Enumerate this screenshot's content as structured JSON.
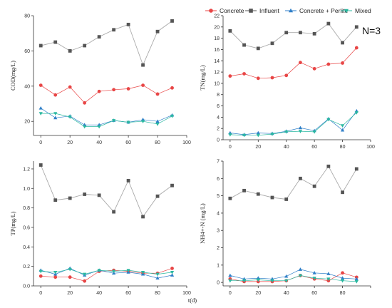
{
  "figure": {
    "legend": [
      {
        "name": "Concrete",
        "color": "#e84545",
        "marker": "circle"
      },
      {
        "name": "Influent",
        "color": "#555555",
        "marker": "square"
      },
      {
        "name": "Concrete + Perlite",
        "color": "#2f7fc8",
        "marker": "triangle-up"
      },
      {
        "name": "Mixed",
        "color": "#2ab8a0",
        "marker": "triangle-down"
      }
    ],
    "note": "N=3",
    "shared_xlabel": "t(d)"
  },
  "chart_data": [
    {
      "type": "line",
      "ylabel": "COD(mg/L)",
      "xlim": [
        -5,
        100
      ],
      "ylim": [
        12,
        80
      ],
      "xticks": [
        0,
        20,
        40,
        60,
        80,
        100
      ],
      "xtick_labels": [
        "0",
        "20",
        "40",
        "60",
        "80",
        "100"
      ],
      "yticks": [
        20,
        40,
        60,
        80
      ],
      "x": [
        0,
        10,
        20,
        30,
        40,
        50,
        60,
        70,
        80,
        90
      ],
      "series": [
        {
          "name": "Influent",
          "values": [
            63,
            65,
            60,
            63,
            68,
            72,
            75,
            52,
            71,
            77
          ]
        },
        {
          "name": "Concrete",
          "values": [
            40.5,
            35,
            39.5,
            30.5,
            37,
            38,
            38.5,
            40.5,
            35.5,
            39
          ]
        },
        {
          "name": "Concrete + Perlite",
          "values": [
            27.5,
            22,
            23,
            18,
            18,
            20.5,
            19.5,
            21,
            20,
            23.5
          ]
        },
        {
          "name": "Mixed",
          "values": [
            24.5,
            24.5,
            22.5,
            17,
            17,
            20.5,
            19.5,
            20,
            18.5,
            23
          ]
        }
      ]
    },
    {
      "type": "line",
      "ylabel": "TN(mg/L)",
      "xlim": [
        -5,
        100
      ],
      "ylim": [
        0,
        22
      ],
      "xticks": [
        0,
        20,
        40,
        60,
        80,
        100
      ],
      "xtick_labels": [
        "0",
        "20",
        "40",
        "60",
        "80",
        "100"
      ],
      "yticks": [
        0,
        2,
        4,
        6,
        8,
        10,
        12,
        14,
        16,
        18,
        20,
        22
      ],
      "x": [
        0,
        10,
        20,
        30,
        40,
        50,
        60,
        70,
        80,
        90
      ],
      "series": [
        {
          "name": "Influent",
          "values": [
            19.3,
            16.8,
            16.2,
            17.1,
            19,
            19,
            18.8,
            20.6,
            17.2,
            20
          ]
        },
        {
          "name": "Concrete",
          "values": [
            11.3,
            11.7,
            10.9,
            11,
            11.4,
            13.7,
            12.6,
            13.4,
            13.6,
            16.3
          ]
        },
        {
          "name": "Concrete + Perlite",
          "values": [
            1.2,
            0.9,
            1.2,
            1.1,
            1.5,
            2.1,
            1.6,
            3.7,
            1.7,
            5.1
          ]
        },
        {
          "name": "Mixed",
          "values": [
            0.9,
            0.8,
            0.8,
            1,
            1.4,
            1.5,
            1.4,
            3.6,
            2.5,
            4.8
          ]
        }
      ]
    },
    {
      "type": "line",
      "ylabel": "TP(mg/L)",
      "xlim": [
        -5,
        100
      ],
      "ylim": [
        0,
        1.28
      ],
      "xticks": [
        0,
        20,
        40,
        60,
        80,
        100
      ],
      "xtick_labels": [
        "0",
        "20",
        "40",
        "60",
        "80",
        "100"
      ],
      "yticks": [
        0,
        0.2,
        0.4,
        0.6,
        0.8,
        1.0,
        1.2
      ],
      "ytick_labels": [
        "0.0",
        "0.2",
        "0.4",
        "0.6",
        "0.8",
        "1.0",
        "1.2"
      ],
      "x": [
        0,
        10,
        20,
        30,
        40,
        50,
        60,
        70,
        80,
        90
      ],
      "series": [
        {
          "name": "Influent",
          "values": [
            1.24,
            0.88,
            0.9,
            0.94,
            0.93,
            0.76,
            1.08,
            0.71,
            0.92,
            1.03
          ]
        },
        {
          "name": "Concrete",
          "values": [
            0.1,
            0.09,
            0.09,
            0.05,
            0.15,
            0.16,
            0.15,
            0.13,
            0.13,
            0.18
          ]
        },
        {
          "name": "Concrete + Perlite",
          "values": [
            0.16,
            0.12,
            0.18,
            0.11,
            0.16,
            0.13,
            0.14,
            0.12,
            0.08,
            0.11
          ]
        },
        {
          "name": "Mixed",
          "values": [
            0.15,
            0.14,
            0.17,
            0.12,
            0.16,
            0.15,
            0.16,
            0.14,
            0.12,
            0.14
          ]
        }
      ]
    },
    {
      "type": "line",
      "ylabel": "NH4+-N (mg/L)",
      "xlim": [
        -5,
        100
      ],
      "ylim": [
        -0.2,
        7
      ],
      "xticks": [
        0,
        20,
        40,
        60,
        80,
        100
      ],
      "xtick_labels": [
        "0",
        "20",
        "40",
        "60",
        "80",
        ""
      ],
      "yticks": [
        0,
        1,
        2,
        3,
        4,
        5,
        6,
        7
      ],
      "x": [
        0,
        10,
        20,
        30,
        40,
        50,
        60,
        70,
        80,
        90
      ],
      "series": [
        {
          "name": "Influent",
          "values": [
            4.85,
            5.3,
            5.1,
            4.9,
            4.8,
            6,
            5.55,
            6.7,
            5.2,
            6.55
          ]
        },
        {
          "name": "Concrete",
          "values": [
            0.2,
            0.05,
            0.05,
            0.05,
            0.1,
            0.4,
            0.2,
            0.1,
            0.55,
            0.3
          ]
        },
        {
          "name": "Concrete + Perlite",
          "values": [
            0.4,
            0.2,
            0.25,
            0.2,
            0.35,
            0.75,
            0.55,
            0.5,
            0.25,
            0.2
          ]
        },
        {
          "name": "Mixed",
          "values": [
            0.1,
            0.1,
            0.15,
            0.1,
            0.1,
            0.4,
            0.25,
            0.2,
            0.1,
            0.05
          ]
        }
      ]
    }
  ]
}
